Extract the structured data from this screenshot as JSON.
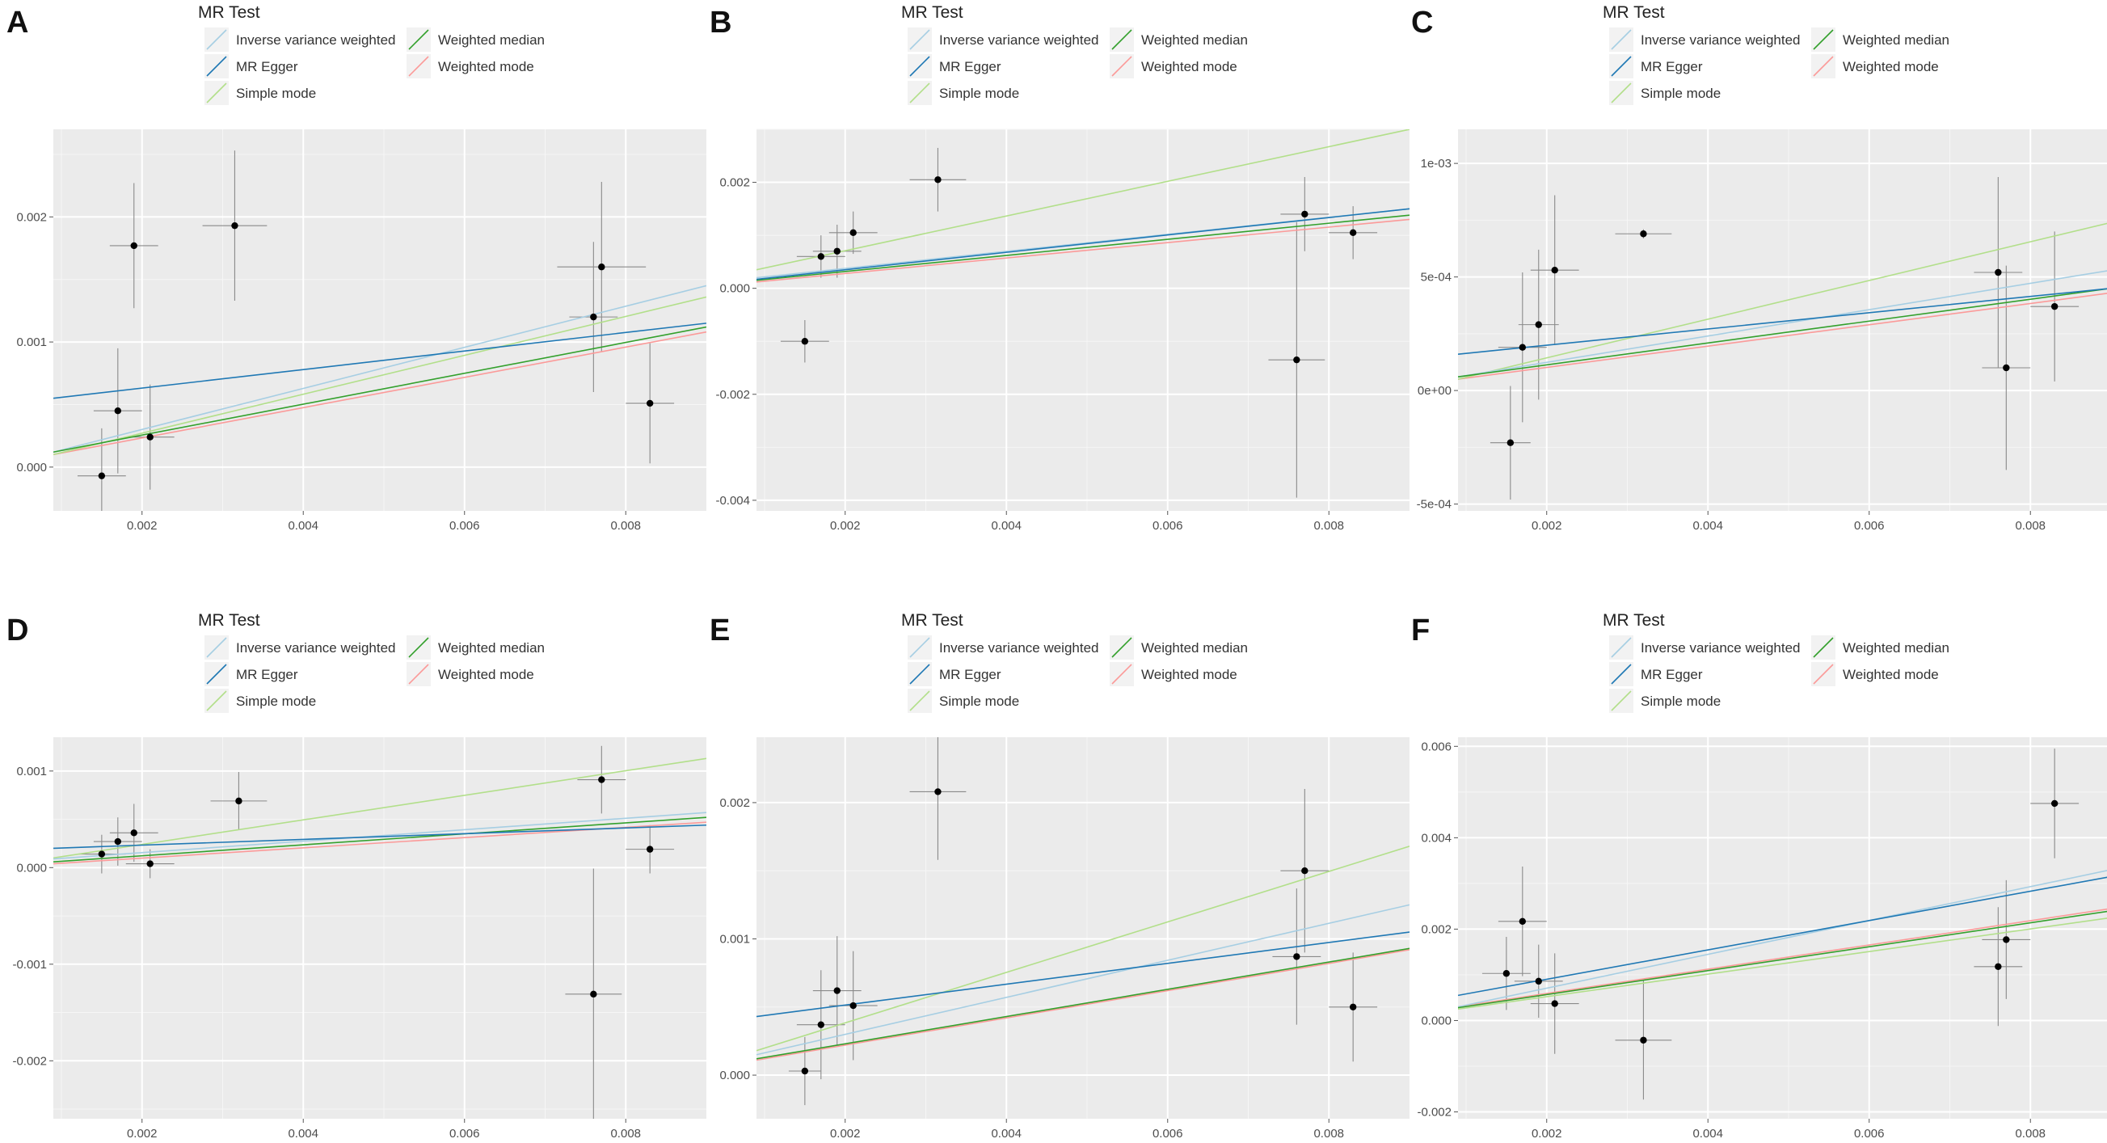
{
  "legend": {
    "title": "MR Test",
    "entries": [
      {
        "name": "Inverse variance weighted",
        "color": "#a6cee3"
      },
      {
        "name": "MR Egger",
        "color": "#1f78b4"
      },
      {
        "name": "Simple mode",
        "color": "#b2df8a"
      },
      {
        "name": "Weighted median",
        "color": "#33a02c"
      },
      {
        "name": "Weighted mode",
        "color": "#fb9a99"
      }
    ]
  },
  "chart_data": [
    {
      "panel": "A",
      "type": "scatter",
      "xlim": [
        0.0009,
        0.009
      ],
      "ylim": [
        -0.00035,
        0.0027
      ],
      "xticks": [
        0.002,
        0.004,
        0.006,
        0.008
      ],
      "xtick_labels": [
        "0.002",
        "0.004",
        "0.006",
        "0.008"
      ],
      "yticks": [
        0.0,
        0.001,
        0.002
      ],
      "ytick_labels": [
        "0.000",
        "0.001",
        "0.002"
      ],
      "points": [
        {
          "x": 0.0015,
          "y": -7e-05,
          "xerr": 0.0003,
          "yerr": 0.00038
        },
        {
          "x": 0.0017,
          "y": 0.00045,
          "xerr": 0.0003,
          "yerr": 0.0005
        },
        {
          "x": 0.0019,
          "y": 0.00177,
          "xerr": 0.0003,
          "yerr": 0.0005
        },
        {
          "x": 0.0021,
          "y": 0.00024,
          "xerr": 0.0003,
          "yerr": 0.00042
        },
        {
          "x": 0.00315,
          "y": 0.00193,
          "xerr": 0.0004,
          "yerr": 0.0006
        },
        {
          "x": 0.0076,
          "y": 0.0012,
          "xerr": 0.0003,
          "yerr": 0.0006
        },
        {
          "x": 0.0077,
          "y": 0.0016,
          "xerr": 0.00055,
          "yerr": 0.00068
        },
        {
          "x": 0.0083,
          "y": 0.00051,
          "xerr": 0.0003,
          "yerr": 0.00048
        }
      ],
      "lines": [
        {
          "method": "Inverse variance weighted",
          "y_start": 0.00012,
          "y_end": 0.00145
        },
        {
          "method": "MR Egger",
          "y_start": 0.00055,
          "y_end": 0.00115
        },
        {
          "method": "Simple mode",
          "y_start": 0.0001,
          "y_end": 0.00136
        },
        {
          "method": "Weighted median",
          "y_start": 0.00012,
          "y_end": 0.00112
        },
        {
          "method": "Weighted mode",
          "y_start": 0.0001,
          "y_end": 0.00108
        }
      ]
    },
    {
      "panel": "B",
      "type": "scatter",
      "xlim": [
        0.0009,
        0.009
      ],
      "ylim": [
        -0.0042,
        0.003
      ],
      "xticks": [
        0.002,
        0.004,
        0.006,
        0.008
      ],
      "xtick_labels": [
        "0.002",
        "0.004",
        "0.006",
        "0.008"
      ],
      "yticks": [
        -0.004,
        -0.002,
        0.0,
        0.002
      ],
      "ytick_labels": [
        "-0.004",
        "-0.002",
        "0.000",
        "0.002"
      ],
      "points": [
        {
          "x": 0.0015,
          "y": -0.001,
          "xerr": 0.0003,
          "yerr": 0.0004
        },
        {
          "x": 0.0017,
          "y": 0.0006,
          "xerr": 0.0003,
          "yerr": 0.0004
        },
        {
          "x": 0.0019,
          "y": 0.0007,
          "xerr": 0.0003,
          "yerr": 0.0005
        },
        {
          "x": 0.0021,
          "y": 0.00105,
          "xerr": 0.0003,
          "yerr": 0.0004
        },
        {
          "x": 0.00315,
          "y": 0.00205,
          "xerr": 0.00035,
          "yerr": 0.0006
        },
        {
          "x": 0.0076,
          "y": -0.00135,
          "xerr": 0.00035,
          "yerr": 0.0026
        },
        {
          "x": 0.0077,
          "y": 0.0014,
          "xerr": 0.0003,
          "yerr": 0.0007
        },
        {
          "x": 0.0083,
          "y": 0.00105,
          "xerr": 0.0003,
          "yerr": 0.0005
        }
      ],
      "lines": [
        {
          "method": "Inverse variance weighted",
          "y_start": 0.0002,
          "y_end": 0.0015
        },
        {
          "method": "MR Egger",
          "y_start": 0.00017,
          "y_end": 0.0015
        },
        {
          "method": "Simple mode",
          "y_start": 0.00035,
          "y_end": 0.003
        },
        {
          "method": "Weighted median",
          "y_start": 0.00015,
          "y_end": 0.00138
        },
        {
          "method": "Weighted mode",
          "y_start": 0.00012,
          "y_end": 0.0013
        }
      ]
    },
    {
      "panel": "C",
      "type": "scatter",
      "xlim": [
        0.0009,
        0.009
      ],
      "ylim": [
        -0.00053,
        0.00115
      ],
      "xticks": [
        0.002,
        0.004,
        0.006,
        0.008
      ],
      "xtick_labels": [
        "0.002",
        "0.004",
        "0.006",
        "0.008"
      ],
      "yticks": [
        -0.0005,
        0.0,
        0.0005,
        0.001
      ],
      "ytick_labels": [
        "-5e-04",
        "0e+00",
        "5e-04",
        "1e-03"
      ],
      "points": [
        {
          "x": 0.00155,
          "y": -0.00023,
          "xerr": 0.00025,
          "yerr": 0.00025
        },
        {
          "x": 0.0017,
          "y": 0.00019,
          "xerr": 0.0003,
          "yerr": 0.00033
        },
        {
          "x": 0.0019,
          "y": 0.00029,
          "xerr": 0.00025,
          "yerr": 0.00033
        },
        {
          "x": 0.0021,
          "y": 0.00053,
          "xerr": 0.0003,
          "yerr": 0.00033
        },
        {
          "x": 0.0032,
          "y": 0.00069,
          "xerr": 0.00035,
          "yerr": 2e-05
        },
        {
          "x": 0.0076,
          "y": 0.00052,
          "xerr": 0.0003,
          "yerr": 0.00042
        },
        {
          "x": 0.0077,
          "y": 0.0001,
          "xerr": 0.0003,
          "yerr": 0.00045
        },
        {
          "x": 0.0083,
          "y": 0.00037,
          "xerr": 0.0003,
          "yerr": 0.00033
        }
      ],
      "lines": [
        {
          "method": "Inverse variance weighted",
          "y_start": 6e-05,
          "y_end": 0.00053
        },
        {
          "method": "MR Egger",
          "y_start": 0.00016,
          "y_end": 0.00045
        },
        {
          "method": "Simple mode",
          "y_start": 5e-05,
          "y_end": 0.00074
        },
        {
          "method": "Weighted median",
          "y_start": 6e-05,
          "y_end": 0.00045
        },
        {
          "method": "Weighted mode",
          "y_start": 5e-05,
          "y_end": 0.00043
        }
      ]
    },
    {
      "panel": "D",
      "type": "scatter",
      "xlim": [
        0.0009,
        0.009
      ],
      "ylim": [
        -0.0026,
        0.00135
      ],
      "xticks": [
        0.002,
        0.004,
        0.006,
        0.008
      ],
      "xtick_labels": [
        "0.002",
        "0.004",
        "0.006",
        "0.008"
      ],
      "yticks": [
        -0.002,
        -0.001,
        0.0,
        0.001
      ],
      "ytick_labels": [
        "-0.002",
        "-0.001",
        "0.000",
        "0.001"
      ],
      "points": [
        {
          "x": 0.0015,
          "y": 0.00014,
          "xerr": 0.0003,
          "yerr": 0.0002
        },
        {
          "x": 0.0017,
          "y": 0.00027,
          "xerr": 0.0003,
          "yerr": 0.00025
        },
        {
          "x": 0.0019,
          "y": 0.00036,
          "xerr": 0.0003,
          "yerr": 0.0003
        },
        {
          "x": 0.0021,
          "y": 4e-05,
          "xerr": 0.0003,
          "yerr": 0.00015
        },
        {
          "x": 0.0032,
          "y": 0.00069,
          "xerr": 0.00035,
          "yerr": 0.0003
        },
        {
          "x": 0.0076,
          "y": -0.00131,
          "xerr": 0.00035,
          "yerr": 0.0013
        },
        {
          "x": 0.0077,
          "y": 0.00091,
          "xerr": 0.0003,
          "yerr": 0.00035
        },
        {
          "x": 0.0083,
          "y": 0.00019,
          "xerr": 0.0003,
          "yerr": 0.00025
        }
      ],
      "lines": [
        {
          "method": "Inverse variance weighted",
          "y_start": 9e-05,
          "y_end": 0.00057
        },
        {
          "method": "MR Egger",
          "y_start": 0.0002,
          "y_end": 0.00044
        },
        {
          "method": "Simple mode",
          "y_start": 0.0001,
          "y_end": 0.00113
        },
        {
          "method": "Weighted median",
          "y_start": 6e-05,
          "y_end": 0.00052
        },
        {
          "method": "Weighted mode",
          "y_start": 4e-05,
          "y_end": 0.00047
        }
      ]
    },
    {
      "panel": "E",
      "type": "scatter",
      "xlim": [
        0.0009,
        0.009
      ],
      "ylim": [
        -0.00032,
        0.00248
      ],
      "xticks": [
        0.002,
        0.004,
        0.006,
        0.008
      ],
      "xtick_labels": [
        "0.002",
        "0.004",
        "0.006",
        "0.008"
      ],
      "yticks": [
        0.0,
        0.001,
        0.002
      ],
      "ytick_labels": [
        "0.000",
        "0.001",
        "0.002"
      ],
      "points": [
        {
          "x": 0.0015,
          "y": 3e-05,
          "xerr": 0.0002,
          "yerr": 0.00025
        },
        {
          "x": 0.0017,
          "y": 0.00037,
          "xerr": 0.0003,
          "yerr": 0.0004
        },
        {
          "x": 0.0019,
          "y": 0.00062,
          "xerr": 0.0003,
          "yerr": 0.0004
        },
        {
          "x": 0.0021,
          "y": 0.00051,
          "xerr": 0.0003,
          "yerr": 0.0004
        },
        {
          "x": 0.00315,
          "y": 0.00208,
          "xerr": 0.00035,
          "yerr": 0.0005
        },
        {
          "x": 0.0076,
          "y": 0.00087,
          "xerr": 0.0003,
          "yerr": 0.0005
        },
        {
          "x": 0.0077,
          "y": 0.0015,
          "xerr": 0.0003,
          "yerr": 0.0006
        },
        {
          "x": 0.0083,
          "y": 0.0005,
          "xerr": 0.0003,
          "yerr": 0.0004
        }
      ],
      "lines": [
        {
          "method": "Inverse variance weighted",
          "y_start": 0.00015,
          "y_end": 0.00125
        },
        {
          "method": "MR Egger",
          "y_start": 0.00043,
          "y_end": 0.00105
        },
        {
          "method": "Simple mode",
          "y_start": 0.00018,
          "y_end": 0.00168
        },
        {
          "method": "Weighted median",
          "y_start": 0.00012,
          "y_end": 0.00093
        },
        {
          "method": "Weighted mode",
          "y_start": 0.00011,
          "y_end": 0.00092
        }
      ]
    },
    {
      "panel": "F",
      "type": "scatter",
      "xlim": [
        0.0009,
        0.009
      ],
      "ylim": [
        -0.00215,
        0.0062
      ],
      "xticks": [
        0.002,
        0.004,
        0.006,
        0.008
      ],
      "xtick_labels": [
        "0.002",
        "0.004",
        "0.006",
        "0.008"
      ],
      "yticks": [
        -0.002,
        0.0,
        0.002,
        0.004,
        0.006
      ],
      "ytick_labels": [
        "-0.002",
        "0.000",
        "0.002",
        "0.004",
        "0.006"
      ],
      "points": [
        {
          "x": 0.0015,
          "y": 0.00103,
          "xerr": 0.0003,
          "yerr": 0.0008
        },
        {
          "x": 0.0017,
          "y": 0.00217,
          "xerr": 0.0003,
          "yerr": 0.0012
        },
        {
          "x": 0.0019,
          "y": 0.00086,
          "xerr": 0.0003,
          "yerr": 0.0008
        },
        {
          "x": 0.0021,
          "y": 0.00037,
          "xerr": 0.0003,
          "yerr": 0.0011
        },
        {
          "x": 0.0032,
          "y": -0.00043,
          "xerr": 0.00035,
          "yerr": 0.0013
        },
        {
          "x": 0.0076,
          "y": 0.00118,
          "xerr": 0.0003,
          "yerr": 0.0013
        },
        {
          "x": 0.0077,
          "y": 0.00177,
          "xerr": 0.0003,
          "yerr": 0.0013
        },
        {
          "x": 0.0083,
          "y": 0.00475,
          "xerr": 0.0003,
          "yerr": 0.0012
        }
      ],
      "lines": [
        {
          "method": "Inverse variance weighted",
          "y_start": 0.0003,
          "y_end": 0.0033
        },
        {
          "method": "MR Egger",
          "y_start": 0.00055,
          "y_end": 0.00315
        },
        {
          "method": "Simple mode",
          "y_start": 0.00025,
          "y_end": 0.00225
        },
        {
          "method": "Weighted median",
          "y_start": 0.00028,
          "y_end": 0.0024
        },
        {
          "method": "Weighted mode",
          "y_start": 0.0003,
          "y_end": 0.00245
        }
      ]
    }
  ]
}
